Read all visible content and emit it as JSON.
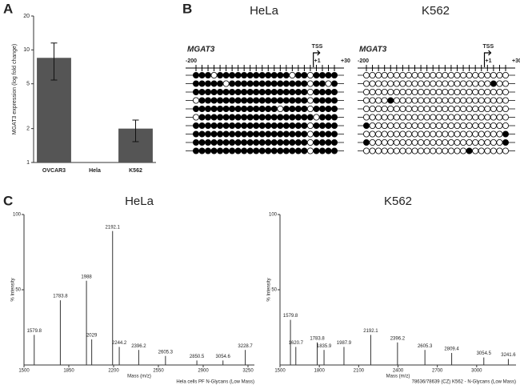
{
  "panel_labels": [
    "A",
    "B",
    "C"
  ],
  "chart_data": [
    {
      "type": "bar",
      "ylabel": "MGAT3 expression (log fold change)",
      "categories": [
        "OVCAR3",
        "Hela",
        "K562"
      ],
      "values": [
        8.5,
        1,
        2
      ],
      "error_low": [
        3.1,
        0,
        0.47
      ],
      "error_high": [
        3.0,
        0,
        0.38
      ],
      "log_scale": true,
      "ylim": [
        1,
        20
      ],
      "yticks": [
        1,
        2,
        5,
        10,
        20
      ],
      "color": "#555555"
    },
    {
      "type": "methylation",
      "title": "HeLa",
      "gene": "MGAT3",
      "tss_label": "TSS",
      "position_labels": [
        "-200",
        "+1",
        "+30"
      ],
      "rows": [
        [
          1,
          1,
          1,
          0,
          1,
          1,
          1,
          1,
          1,
          1,
          1,
          1,
          1,
          1,
          1,
          1,
          0,
          1,
          1,
          0,
          1,
          1,
          1,
          1
        ],
        [
          1,
          1,
          1,
          1,
          1,
          0,
          1,
          1,
          1,
          1,
          1,
          1,
          1,
          1,
          1,
          1,
          1,
          1,
          1,
          0,
          1,
          1,
          0,
          1
        ],
        [
          1,
          1,
          1,
          1,
          1,
          1,
          1,
          1,
          1,
          1,
          1,
          1,
          1,
          1,
          1,
          1,
          1,
          1,
          1,
          0,
          1,
          1,
          1,
          1
        ],
        [
          0,
          1,
          1,
          1,
          1,
          1,
          1,
          1,
          1,
          1,
          1,
          1,
          1,
          1,
          1,
          1,
          1,
          1,
          1,
          0,
          1,
          1,
          1,
          1
        ],
        [
          1,
          1,
          1,
          1,
          1,
          1,
          1,
          1,
          1,
          1,
          1,
          1,
          1,
          1,
          0,
          1,
          1,
          1,
          1,
          0,
          1,
          1,
          1,
          1
        ],
        [
          0,
          1,
          1,
          1,
          1,
          1,
          1,
          1,
          1,
          1,
          1,
          1,
          1,
          1,
          1,
          1,
          1,
          1,
          1,
          1,
          0,
          1,
          1,
          1
        ],
        [
          1,
          1,
          1,
          1,
          1,
          1,
          1,
          1,
          1,
          1,
          1,
          1,
          1,
          1,
          1,
          1,
          1,
          1,
          1,
          0,
          1,
          1,
          1,
          1
        ],
        [
          1,
          1,
          1,
          1,
          1,
          1,
          1,
          1,
          1,
          1,
          1,
          1,
          1,
          1,
          1,
          1,
          1,
          1,
          1,
          0,
          1,
          1,
          1,
          1
        ],
        [
          1,
          1,
          1,
          1,
          1,
          1,
          1,
          1,
          1,
          1,
          1,
          1,
          1,
          1,
          1,
          1,
          1,
          1,
          1,
          0,
          1,
          1,
          1,
          1
        ],
        [
          1,
          1,
          1,
          1,
          1,
          1,
          1,
          1,
          1,
          1,
          1,
          1,
          1,
          1,
          1,
          1,
          1,
          1,
          1,
          0,
          1,
          1,
          1,
          1
        ]
      ]
    },
    {
      "type": "methylation",
      "title": "K562",
      "gene": "MGAT3",
      "tss_label": "TSS",
      "position_labels": [
        "-200",
        "+1",
        "+30"
      ],
      "rows": [
        [
          0,
          0,
          0,
          0,
          0,
          0,
          0,
          0,
          0,
          0,
          0,
          0,
          0,
          0,
          0,
          0,
          0,
          0,
          0,
          0,
          0,
          0,
          0,
          0
        ],
        [
          0,
          0,
          0,
          0,
          0,
          0,
          0,
          0,
          0,
          0,
          0,
          0,
          0,
          0,
          0,
          0,
          0,
          0,
          0,
          0,
          0,
          1,
          0,
          0
        ],
        [
          0,
          0,
          0,
          0,
          0,
          0,
          0,
          0,
          0,
          0,
          0,
          0,
          0,
          0,
          0,
          0,
          0,
          0,
          0,
          0,
          0,
          0,
          0,
          0
        ],
        [
          0,
          0,
          0,
          0,
          1,
          0,
          0,
          0,
          0,
          0,
          0,
          0,
          0,
          0,
          0,
          0,
          0,
          0,
          0,
          0,
          0,
          0,
          0,
          0
        ],
        [
          0,
          0,
          0,
          0,
          0,
          0,
          0,
          0,
          0,
          0,
          0,
          0,
          0,
          0,
          0,
          0,
          0,
          0,
          0,
          0,
          0,
          0,
          0,
          0
        ],
        [
          0,
          0,
          0,
          0,
          0,
          0,
          0,
          0,
          0,
          0,
          0,
          0,
          0,
          0,
          0,
          0,
          0,
          0,
          0,
          0,
          0,
          0,
          0,
          0
        ],
        [
          1,
          0,
          0,
          0,
          0,
          0,
          0,
          0,
          0,
          0,
          0,
          0,
          0,
          0,
          0,
          0,
          0,
          0,
          0,
          0,
          0,
          0,
          0,
          0
        ],
        [
          0,
          0,
          0,
          0,
          0,
          0,
          0,
          0,
          0,
          0,
          0,
          0,
          0,
          0,
          0,
          0,
          0,
          0,
          0,
          0,
          0,
          0,
          0,
          1
        ],
        [
          1,
          0,
          0,
          0,
          0,
          0,
          0,
          0,
          0,
          0,
          0,
          0,
          0,
          0,
          0,
          0,
          0,
          0,
          0,
          0,
          0,
          0,
          0,
          1
        ],
        [
          0,
          0,
          0,
          0,
          0,
          0,
          0,
          0,
          0,
          0,
          0,
          0,
          0,
          0,
          0,
          0,
          0,
          1,
          0,
          0,
          0,
          0,
          0,
          0
        ]
      ]
    },
    {
      "type": "spectrum",
      "title": "HeLa",
      "xlabel": "Mass (m/z)",
      "ylabel": "% Intensity",
      "footer": "Hela cells PF N-Glycans (Low Mass)",
      "xlim": [
        1500,
        3300
      ],
      "xticks": [
        1500,
        1850,
        2200,
        2550,
        2900,
        3250
      ],
      "ylim": [
        0,
        100
      ],
      "yticks": [
        50,
        100
      ],
      "color": "#333333",
      "x": [
        1579.8,
        1783.8,
        1988.0,
        2029.0,
        2192.1,
        2244.2,
        2396.2,
        2605.3,
        2850.5,
        3054.6,
        3228.7
      ],
      "values": [
        20,
        43,
        56,
        17,
        89,
        12,
        10,
        6,
        3,
        3,
        10
      ]
    },
    {
      "type": "spectrum",
      "title": "K562",
      "xlabel": "Mass (m/z)",
      "ylabel": "% Intensity",
      "footer": "78636/78639 (CZ) K562 - N-Glycans (Low Mass)",
      "xlim": [
        1500,
        3300
      ],
      "xticks": [
        1500,
        1800,
        2100,
        2400,
        2700,
        3000
      ],
      "ylim": [
        0,
        100
      ],
      "yticks": [
        50,
        100
      ],
      "color": "#333333",
      "x": [
        1579.8,
        1620.7,
        1783.8,
        1835.9,
        1987.9,
        2192.1,
        2396.2,
        2605.3,
        2809.4,
        3054.5,
        3241.6
      ],
      "values": [
        30,
        12,
        15,
        10,
        12,
        20,
        15,
        10,
        8,
        5,
        4
      ]
    }
  ]
}
